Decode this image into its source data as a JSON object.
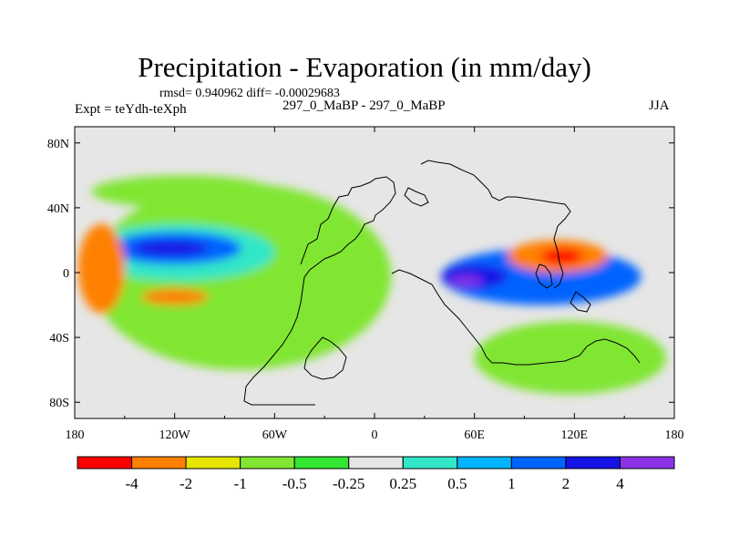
{
  "chart_data": {
    "type": "contour-map",
    "title": "Precipitation - Evaporation (in mm/day)",
    "stats_label": "rmsd= 0.940962 diff= -0.00029683",
    "experiment_label": "Expt = teYdh-teXph",
    "experiment_name": "297_0_MaBP - 297_0_MaBP",
    "season": "JJA",
    "x_axis": {
      "range": [
        -180,
        180
      ],
      "ticks": [
        -180,
        -120,
        -60,
        0,
        60,
        120,
        180
      ],
      "tick_labels": [
        "180",
        "120W",
        "60W",
        "0",
        "60E",
        "120E",
        "180"
      ]
    },
    "y_axis": {
      "range": [
        -90,
        90
      ],
      "ticks": [
        80,
        40,
        0,
        -40,
        -80
      ],
      "tick_labels": [
        "80N",
        "40N",
        "0",
        "40S",
        "80S"
      ]
    },
    "colorbar": {
      "levels": [
        "-4",
        "-2",
        "-1",
        "-0.5",
        "-0.25",
        "0.25",
        "0.5",
        "1",
        "2",
        "4"
      ],
      "colors": [
        "#ff0000",
        "#ff8000",
        "#e6e600",
        "#80e632",
        "#32e632",
        "#e6e6e6",
        "#32e6c8",
        "#00b4ff",
        "#0064ff",
        "#1414e6",
        "#8c32e6"
      ]
    },
    "field_regions": [
      {
        "color": "#80e632",
        "lon": [
          -170,
          10
        ],
        "lat": [
          -60,
          55
        ]
      },
      {
        "color": "#32e6c8",
        "lon": [
          -175,
          -60
        ],
        "lat": [
          -5,
          30
        ]
      },
      {
        "color": "#0064ff",
        "lon": [
          -160,
          -80
        ],
        "lat": [
          5,
          25
        ]
      },
      {
        "color": "#1414e6",
        "lon": [
          -145,
          -100
        ],
        "lat": [
          10,
          20
        ]
      },
      {
        "color": "#ff8000",
        "lon": [
          -178,
          -150
        ],
        "lat": [
          -25,
          30
        ]
      },
      {
        "color": "#ff8000",
        "lon": [
          -140,
          -100
        ],
        "lat": [
          -20,
          -10
        ]
      },
      {
        "color": "#0064ff",
        "lon": [
          40,
          160
        ],
        "lat": [
          -20,
          15
        ]
      },
      {
        "color": "#1414e6",
        "lon": [
          40,
          80
        ],
        "lat": [
          -10,
          5
        ]
      },
      {
        "color": "#8c32e6",
        "lon": [
          45,
          65
        ],
        "lat": [
          -8,
          -2
        ]
      },
      {
        "color": "#ff8000",
        "lon": [
          80,
          140
        ],
        "lat": [
          0,
          20
        ]
      },
      {
        "color": "#ff0000",
        "lon": [
          100,
          125
        ],
        "lat": [
          5,
          15
        ]
      },
      {
        "color": "#80e632",
        "lon": [
          60,
          175
        ],
        "lat": [
          -75,
          -30
        ]
      },
      {
        "color": "#80e632",
        "lon": [
          -170,
          -60
        ],
        "lat": [
          40,
          60
        ]
      }
    ]
  }
}
